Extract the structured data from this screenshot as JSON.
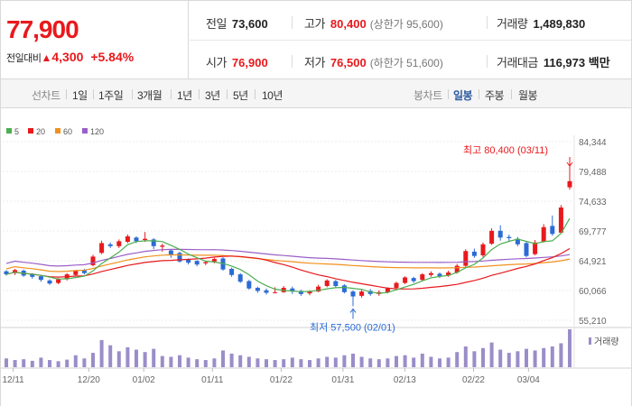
{
  "header": {
    "price": "77,900",
    "change_label": "전일대비",
    "change_icon": "up-triangle-icon",
    "change_abs": "4,300",
    "change_pct": "+5.84%",
    "stats": {
      "prev_close": {
        "label": "전일",
        "value": "73,600"
      },
      "high": {
        "label": "고가",
        "value": "80,400",
        "sub": "(상한가 95,600)"
      },
      "volume": {
        "label": "거래량",
        "value": "1,489,830"
      },
      "open": {
        "label": "시가",
        "value": "76,900"
      },
      "low": {
        "label": "저가",
        "value": "76,500",
        "sub": "(하한가 51,600)"
      },
      "amount": {
        "label": "거래대금",
        "value": "116,973 백만"
      }
    }
  },
  "toolbar": {
    "line_chart_label": "선차트",
    "line_periods": [
      "1일",
      "1주일",
      "3개월",
      "1년",
      "3년",
      "5년",
      "10년"
    ],
    "candle_chart_label": "봉차트",
    "candle_periods": [
      "일봉",
      "주봉",
      "월봉"
    ],
    "candle_active": "일봉"
  },
  "colors": {
    "up": "#e8191d",
    "down": "#2b6bd6",
    "ma5": "#4caf50",
    "ma20": "#e8191d",
    "ma60": "#f0901d",
    "ma120": "#9a5fc8",
    "volume": "#9b8dc9"
  },
  "chart_data": {
    "type": "candlestick",
    "legend": [
      {
        "name": "5",
        "color": "#4caf50"
      },
      {
        "name": "20",
        "color": "#e8191d"
      },
      {
        "name": "60",
        "color": "#f0901d"
      },
      {
        "name": "120",
        "color": "#9a5fc8"
      }
    ],
    "y_ticks": [
      "84,344",
      "79,488",
      "74,633",
      "69,777",
      "64,921",
      "60,066",
      "55,210"
    ],
    "ylim": [
      55210,
      84344
    ],
    "x_ticks": [
      "12/11",
      "12/20",
      "01/02",
      "01/11",
      "01/22",
      "01/31",
      "02/13",
      "02/22",
      "03/04"
    ],
    "volume_legend": "거래량",
    "high_annotation": "최고 80,400 (03/11)",
    "low_annotation": "최저 57,500 (02/01)",
    "candles": [
      {
        "o": 63200,
        "c": 62700,
        "h": 63400,
        "l": 62500,
        "v": 22
      },
      {
        "o": 62900,
        "c": 63400,
        "h": 63600,
        "l": 62600,
        "v": 18
      },
      {
        "o": 63300,
        "c": 62500,
        "h": 63500,
        "l": 62300,
        "v": 20
      },
      {
        "o": 62700,
        "c": 62300,
        "h": 62900,
        "l": 62000,
        "v": 16
      },
      {
        "o": 62400,
        "c": 61800,
        "h": 62600,
        "l": 61500,
        "v": 24
      },
      {
        "o": 61700,
        "c": 61200,
        "h": 61900,
        "l": 61000,
        "v": 18
      },
      {
        "o": 61300,
        "c": 61900,
        "h": 62100,
        "l": 61100,
        "v": 15
      },
      {
        "o": 61900,
        "c": 62700,
        "h": 62900,
        "l": 61700,
        "v": 19
      },
      {
        "o": 62600,
        "c": 63300,
        "h": 63400,
        "l": 62400,
        "v": 30
      },
      {
        "o": 63400,
        "c": 62900,
        "h": 63600,
        "l": 62700,
        "v": 22
      },
      {
        "o": 64200,
        "c": 65600,
        "h": 65900,
        "l": 64000,
        "v": 36
      },
      {
        "o": 66200,
        "c": 67800,
        "h": 68200,
        "l": 66000,
        "v": 68
      },
      {
        "o": 67600,
        "c": 67300,
        "h": 67900,
        "l": 67000,
        "v": 55
      },
      {
        "o": 67300,
        "c": 68100,
        "h": 68400,
        "l": 67000,
        "v": 40
      },
      {
        "o": 68000,
        "c": 68900,
        "h": 69200,
        "l": 67800,
        "v": 50
      },
      {
        "o": 68700,
        "c": 68100,
        "h": 68900,
        "l": 67800,
        "v": 44
      },
      {
        "o": 68300,
        "c": 68500,
        "h": 69600,
        "l": 68000,
        "v": 38
      },
      {
        "o": 68400,
        "c": 67300,
        "h": 68600,
        "l": 66800,
        "v": 46
      },
      {
        "o": 67200,
        "c": 67400,
        "h": 67700,
        "l": 66400,
        "v": 28
      },
      {
        "o": 66600,
        "c": 65900,
        "h": 66800,
        "l": 65400,
        "v": 26
      },
      {
        "o": 66200,
        "c": 64800,
        "h": 66400,
        "l": 64600,
        "v": 30
      },
      {
        "o": 65200,
        "c": 64600,
        "h": 65300,
        "l": 64300,
        "v": 24
      },
      {
        "o": 64900,
        "c": 64300,
        "h": 65000,
        "l": 64000,
        "v": 20
      },
      {
        "o": 64500,
        "c": 64700,
        "h": 64900,
        "l": 64200,
        "v": 18
      },
      {
        "o": 64800,
        "c": 65200,
        "h": 65400,
        "l": 64500,
        "v": 22
      },
      {
        "o": 65300,
        "c": 63500,
        "h": 65500,
        "l": 63300,
        "v": 42
      },
      {
        "o": 63600,
        "c": 62600,
        "h": 63800,
        "l": 62300,
        "v": 34
      },
      {
        "o": 62700,
        "c": 61500,
        "h": 62900,
        "l": 61300,
        "v": 30
      },
      {
        "o": 61600,
        "c": 60400,
        "h": 61800,
        "l": 60200,
        "v": 26
      },
      {
        "o": 60500,
        "c": 60000,
        "h": 60700,
        "l": 59700,
        "v": 22
      },
      {
        "o": 60100,
        "c": 59700,
        "h": 60400,
        "l": 59400,
        "v": 20
      },
      {
        "o": 59800,
        "c": 59800,
        "h": 60600,
        "l": 59600,
        "v": 18
      },
      {
        "o": 59800,
        "c": 60500,
        "h": 60800,
        "l": 59700,
        "v": 20
      },
      {
        "o": 60400,
        "c": 59900,
        "h": 60700,
        "l": 59500,
        "v": 24
      },
      {
        "o": 60000,
        "c": 59500,
        "h": 60200,
        "l": 59200,
        "v": 20
      },
      {
        "o": 59600,
        "c": 59900,
        "h": 60100,
        "l": 59300,
        "v": 18
      },
      {
        "o": 59900,
        "c": 60700,
        "h": 61000,
        "l": 59800,
        "v": 22
      },
      {
        "o": 60800,
        "c": 61700,
        "h": 61900,
        "l": 60600,
        "v": 26
      },
      {
        "o": 61600,
        "c": 60800,
        "h": 61800,
        "l": 60500,
        "v": 24
      },
      {
        "o": 60900,
        "c": 59800,
        "h": 61100,
        "l": 59600,
        "v": 30
      },
      {
        "o": 59900,
        "c": 59100,
        "h": 60100,
        "l": 57500,
        "v": 34
      },
      {
        "o": 59200,
        "c": 59900,
        "h": 60200,
        "l": 58900,
        "v": 26
      },
      {
        "o": 60000,
        "c": 59500,
        "h": 60300,
        "l": 59200,
        "v": 22
      },
      {
        "o": 59500,
        "c": 59800,
        "h": 60100,
        "l": 59200,
        "v": 20
      },
      {
        "o": 59800,
        "c": 60400,
        "h": 60600,
        "l": 59600,
        "v": 22
      },
      {
        "o": 60500,
        "c": 61300,
        "h": 61500,
        "l": 60300,
        "v": 28
      },
      {
        "o": 61300,
        "c": 62200,
        "h": 62400,
        "l": 61100,
        "v": 30
      },
      {
        "o": 62100,
        "c": 61600,
        "h": 62300,
        "l": 61300,
        "v": 24
      },
      {
        "o": 61800,
        "c": 62700,
        "h": 62900,
        "l": 61600,
        "v": 34
      },
      {
        "o": 62600,
        "c": 62900,
        "h": 63200,
        "l": 62300,
        "v": 26
      },
      {
        "o": 62800,
        "c": 62400,
        "h": 63000,
        "l": 62100,
        "v": 22
      },
      {
        "o": 62500,
        "c": 63000,
        "h": 63300,
        "l": 62300,
        "v": 24
      },
      {
        "o": 63000,
        "c": 64100,
        "h": 64400,
        "l": 62800,
        "v": 38
      },
      {
        "o": 64100,
        "c": 66500,
        "h": 66800,
        "l": 63900,
        "v": 52
      },
      {
        "o": 66400,
        "c": 65700,
        "h": 66900,
        "l": 65400,
        "v": 40
      },
      {
        "o": 65800,
        "c": 67600,
        "h": 67900,
        "l": 65500,
        "v": 48
      },
      {
        "o": 67700,
        "c": 69800,
        "h": 70200,
        "l": 67500,
        "v": 62
      },
      {
        "o": 69800,
        "c": 68700,
        "h": 70700,
        "l": 68200,
        "v": 44
      },
      {
        "o": 68800,
        "c": 68600,
        "h": 69200,
        "l": 68100,
        "v": 36
      },
      {
        "o": 68500,
        "c": 67600,
        "h": 68800,
        "l": 67300,
        "v": 40
      },
      {
        "o": 67800,
        "c": 65700,
        "h": 68100,
        "l": 65500,
        "v": 46
      },
      {
        "o": 66000,
        "c": 67900,
        "h": 68300,
        "l": 65800,
        "v": 42
      },
      {
        "o": 68000,
        "c": 70400,
        "h": 70900,
        "l": 67900,
        "v": 48
      },
      {
        "o": 70600,
        "c": 69300,
        "h": 72300,
        "l": 69000,
        "v": 52
      },
      {
        "o": 69500,
        "c": 73600,
        "h": 74000,
        "l": 69400,
        "v": 60
      },
      {
        "o": 76900,
        "c": 77900,
        "h": 80400,
        "l": 76500,
        "v": 95
      }
    ]
  }
}
